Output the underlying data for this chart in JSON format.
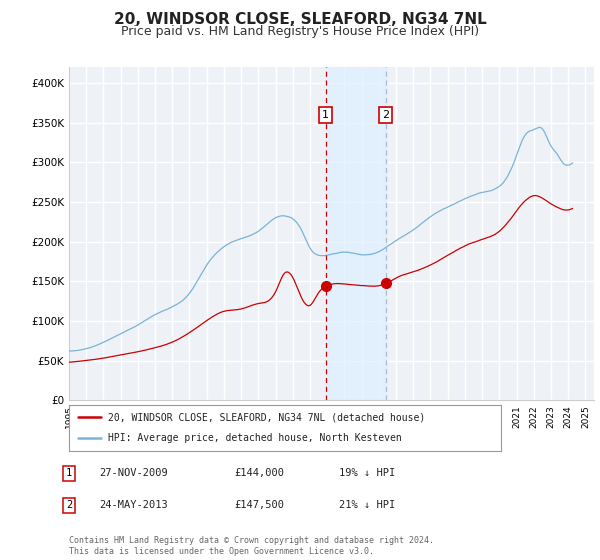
{
  "title": "20, WINDSOR CLOSE, SLEAFORD, NG34 7NL",
  "subtitle": "Price paid vs. HM Land Registry's House Price Index (HPI)",
  "title_fontsize": 11,
  "subtitle_fontsize": 9,
  "ylabel_ticks": [
    "£0",
    "£50K",
    "£100K",
    "£150K",
    "£200K",
    "£250K",
    "£300K",
    "£350K",
    "£400K"
  ],
  "ytick_values": [
    0,
    50000,
    100000,
    150000,
    200000,
    250000,
    300000,
    350000,
    400000
  ],
  "ylim": [
    0,
    420000
  ],
  "xlim_start": 1995.0,
  "xlim_end": 2025.5,
  "hpi_color": "#7ab3d8",
  "price_color": "#cc0000",
  "background_color": "#eef2f7",
  "grid_color": "#ffffff",
  "legend_label_red": "20, WINDSOR CLOSE, SLEAFORD, NG34 7NL (detached house)",
  "legend_label_blue": "HPI: Average price, detached house, North Kesteven",
  "event1_x": 2009.91,
  "event1_y": 144000,
  "event1_label": "1",
  "event2_x": 2013.4,
  "event2_y": 147500,
  "event2_label": "2",
  "footer": "Contains HM Land Registry data © Crown copyright and database right 2024.\nThis data is licensed under the Open Government Licence v3.0."
}
